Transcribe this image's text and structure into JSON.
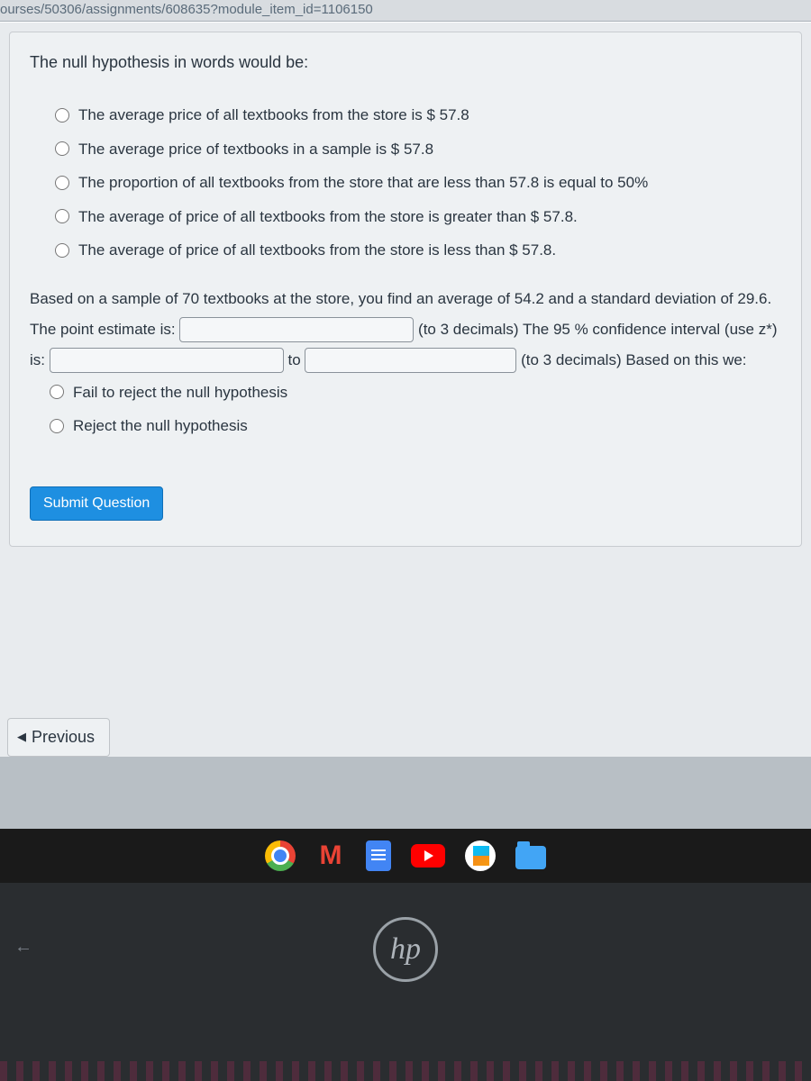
{
  "url": "ourses/50306/assignments/608635?module_item_id=1106150",
  "question": {
    "prompt": "The null hypothesis in words would be:",
    "options1": [
      "The average price of all textbooks from the store is $ 57.8",
      "The average price of textbooks in a sample is $ 57.8",
      "The proportion of all textbooks from the store that are less than 57.8 is equal to 50%",
      "The average of price of all textbooks from the store is greater than $ 57.8.",
      "The average of price of all textbooks from the store is less than $ 57.8."
    ],
    "para_part1": "Based on a sample of 70 textbooks at the store, you find an average of 54.2 and a standard deviation of 29.6. The point estimate is:",
    "para_after1": "(to 3 decimals) The 95 % confidence interval (use z*) is:",
    "to_label": "to",
    "para_after2": "(to 3 decimals) Based on this we:",
    "options2": [
      "Fail to reject the null hypothesis",
      "Reject the null hypothesis"
    ],
    "submit_label": "Submit Question"
  },
  "nav": {
    "previous": "Previous"
  },
  "taskbar": {
    "icons": [
      "chrome",
      "gmail",
      "docs",
      "youtube",
      "play",
      "files"
    ]
  },
  "laptop": {
    "brand": "hp"
  },
  "colors": {
    "submit_bg": "#1e8fe1",
    "card_bg": "#eef1f3",
    "page_bg": "#e8ebee"
  }
}
